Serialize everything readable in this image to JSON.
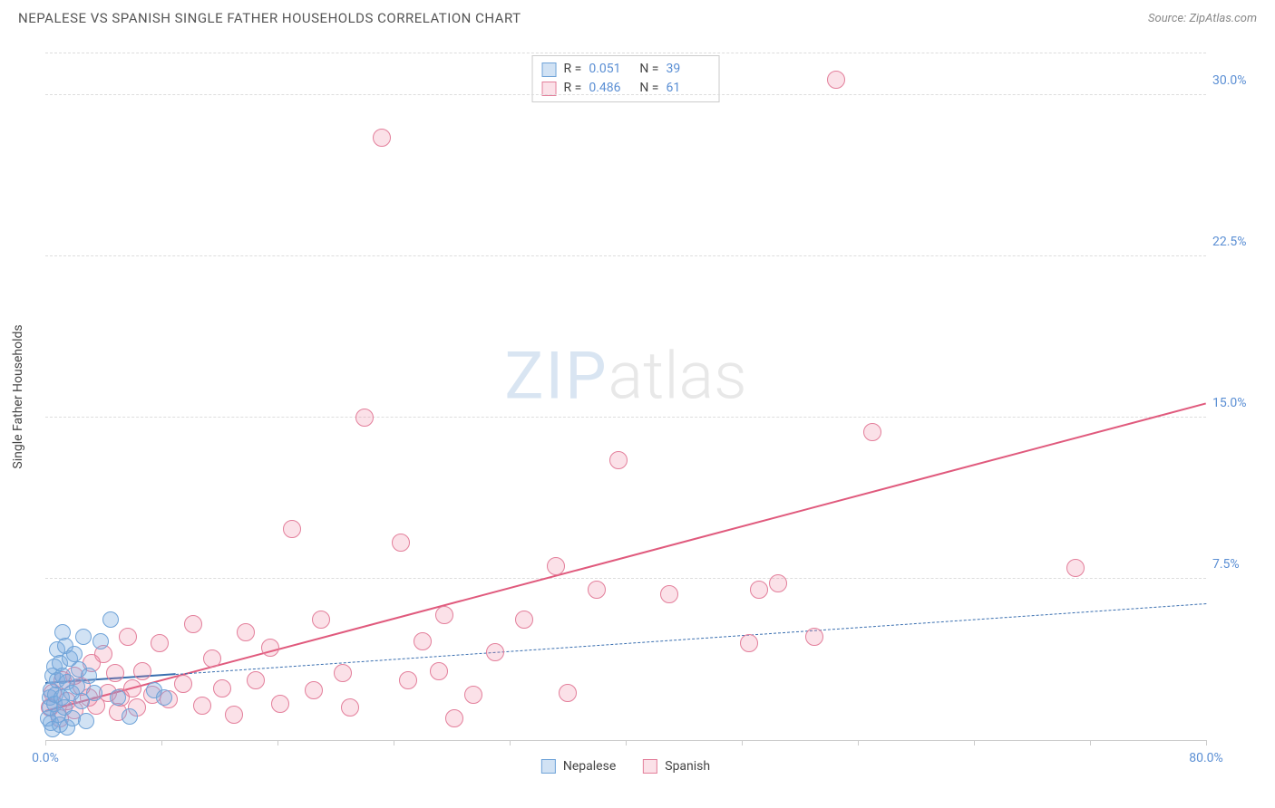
{
  "header": {
    "title": "NEPALESE VS SPANISH SINGLE FATHER HOUSEHOLDS CORRELATION CHART",
    "source_prefix": "Source: ",
    "source": "ZipAtlas.com"
  },
  "watermark": {
    "part1": "ZIP",
    "part2": "atlas"
  },
  "axes": {
    "y_title": "Single Father Households",
    "x_min": 0,
    "x_max": 80,
    "y_min": 0,
    "y_max": 32,
    "x_label_min": "0.0%",
    "x_label_max": "80.0%",
    "y_ticks": [
      {
        "v": 7.5,
        "label": "7.5%"
      },
      {
        "v": 15.0,
        "label": "15.0%"
      },
      {
        "v": 22.5,
        "label": "22.5%"
      },
      {
        "v": 30.0,
        "label": "30.0%"
      }
    ],
    "x_tick_positions": [
      0,
      8,
      16,
      24,
      32,
      40,
      48,
      56,
      64,
      72,
      80
    ]
  },
  "series": {
    "nepalese": {
      "label": "Nepalese",
      "R": "0.051",
      "N": "39",
      "color_fill": "rgba(122,173,224,0.35)",
      "color_stroke": "#6fa3d8",
      "marker_radius": 9,
      "trend": {
        "x0": 0,
        "y0": 2.6,
        "x1": 80,
        "y1": 6.3,
        "solid_until_x": 9,
        "stroke": "#3a6fb0",
        "width": 2
      },
      "points": [
        [
          0.2,
          1.0
        ],
        [
          0.3,
          1.5
        ],
        [
          0.3,
          2.0
        ],
        [
          0.4,
          0.8
        ],
        [
          0.4,
          2.3
        ],
        [
          0.5,
          0.5
        ],
        [
          0.5,
          3.0
        ],
        [
          0.6,
          1.7
        ],
        [
          0.6,
          3.4
        ],
        [
          0.7,
          2.1
        ],
        [
          0.8,
          4.2
        ],
        [
          0.8,
          2.8
        ],
        [
          0.9,
          1.2
        ],
        [
          1.0,
          3.6
        ],
        [
          1.0,
          0.7
        ],
        [
          1.1,
          2.0
        ],
        [
          1.2,
          3.0
        ],
        [
          1.2,
          5.0
        ],
        [
          1.3,
          1.5
        ],
        [
          1.4,
          4.4
        ],
        [
          1.5,
          2.7
        ],
        [
          1.5,
          0.6
        ],
        [
          1.7,
          3.8
        ],
        [
          1.8,
          2.2
        ],
        [
          1.9,
          1.0
        ],
        [
          2.0,
          4.0
        ],
        [
          2.2,
          2.5
        ],
        [
          2.3,
          3.3
        ],
        [
          2.5,
          1.8
        ],
        [
          2.6,
          4.8
        ],
        [
          2.8,
          0.9
        ],
        [
          3.0,
          3.0
        ],
        [
          3.4,
          2.2
        ],
        [
          3.8,
          4.6
        ],
        [
          4.5,
          5.6
        ],
        [
          5.0,
          2.0
        ],
        [
          5.8,
          1.1
        ],
        [
          7.5,
          2.3
        ],
        [
          8.2,
          2.0
        ]
      ]
    },
    "spanish": {
      "label": "Spanish",
      "R": "0.486",
      "N": "61",
      "color_fill": "rgba(235,120,150,0.22)",
      "color_stroke": "#e37f9b",
      "marker_radius": 10,
      "trend": {
        "x0": 0,
        "y0": 1.3,
        "x1": 80,
        "y1": 15.6,
        "stroke": "#e05a7d",
        "width": 2.5
      },
      "points": [
        [
          0.3,
          1.5
        ],
        [
          0.5,
          2.2
        ],
        [
          1.0,
          1.0
        ],
        [
          1.2,
          2.8
        ],
        [
          1.5,
          1.8
        ],
        [
          2.0,
          3.0
        ],
        [
          2.0,
          1.4
        ],
        [
          2.5,
          2.5
        ],
        [
          3.0,
          2.0
        ],
        [
          3.2,
          3.6
        ],
        [
          3.5,
          1.6
        ],
        [
          4.0,
          4.0
        ],
        [
          4.3,
          2.2
        ],
        [
          4.8,
          3.1
        ],
        [
          5.0,
          1.3
        ],
        [
          5.2,
          2.0
        ],
        [
          5.7,
          4.8
        ],
        [
          6.0,
          2.4
        ],
        [
          6.3,
          1.5
        ],
        [
          6.7,
          3.2
        ],
        [
          7.4,
          2.1
        ],
        [
          7.9,
          4.5
        ],
        [
          8.5,
          1.9
        ],
        [
          9.5,
          2.6
        ],
        [
          10.2,
          5.4
        ],
        [
          10.8,
          1.6
        ],
        [
          11.5,
          3.8
        ],
        [
          12.2,
          2.4
        ],
        [
          13.0,
          1.2
        ],
        [
          13.8,
          5.0
        ],
        [
          14.5,
          2.8
        ],
        [
          15.5,
          4.3
        ],
        [
          16.2,
          1.7
        ],
        [
          17.0,
          9.8
        ],
        [
          18.5,
          2.3
        ],
        [
          19.0,
          5.6
        ],
        [
          20.5,
          3.1
        ],
        [
          21.0,
          1.5
        ],
        [
          22.0,
          15.0
        ],
        [
          23.2,
          28.0
        ],
        [
          24.5,
          9.2
        ],
        [
          25.0,
          2.8
        ],
        [
          26.0,
          4.6
        ],
        [
          27.1,
          3.2
        ],
        [
          27.5,
          5.8
        ],
        [
          28.2,
          1.0
        ],
        [
          29.5,
          2.1
        ],
        [
          31.0,
          4.1
        ],
        [
          33.0,
          5.6
        ],
        [
          35.2,
          8.1
        ],
        [
          36.0,
          2.2
        ],
        [
          38.0,
          7.0
        ],
        [
          39.5,
          13.0
        ],
        [
          43.0,
          6.8
        ],
        [
          48.5,
          4.5
        ],
        [
          49.2,
          7.0
        ],
        [
          50.5,
          7.3
        ],
        [
          53.0,
          4.8
        ],
        [
          54.5,
          30.7
        ],
        [
          57.0,
          14.3
        ],
        [
          71.0,
          8.0
        ]
      ]
    }
  },
  "legend_labels": {
    "R_label": "R =",
    "N_label": "N ="
  },
  "styling": {
    "bg": "#ffffff",
    "grid_color": "#dddddd",
    "axis_label_color": "#5b8fd4",
    "text_color": "#444444"
  }
}
